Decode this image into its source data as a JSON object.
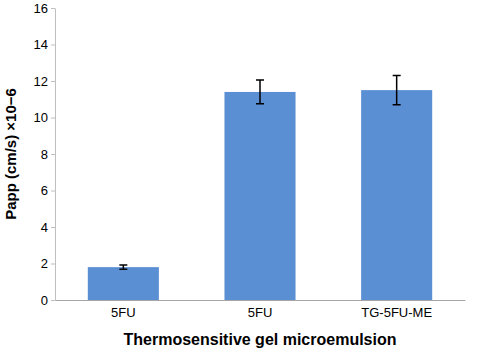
{
  "chart_data": {
    "type": "bar",
    "categories": [
      "5FU",
      "5FU",
      "TG-5FU-ME"
    ],
    "values": [
      1.8,
      11.4,
      11.5
    ],
    "errors": [
      0.12,
      0.65,
      0.8
    ],
    "color": "#5b8fd4",
    "x_label": "Thermosensitive gel microemulsion",
    "y_label": "Papp (cm/s) ×10−6",
    "ylim": [
      0,
      16
    ],
    "yticks": [
      0,
      2,
      4,
      6,
      8,
      10,
      12,
      14,
      16
    ],
    "grid": false
  }
}
